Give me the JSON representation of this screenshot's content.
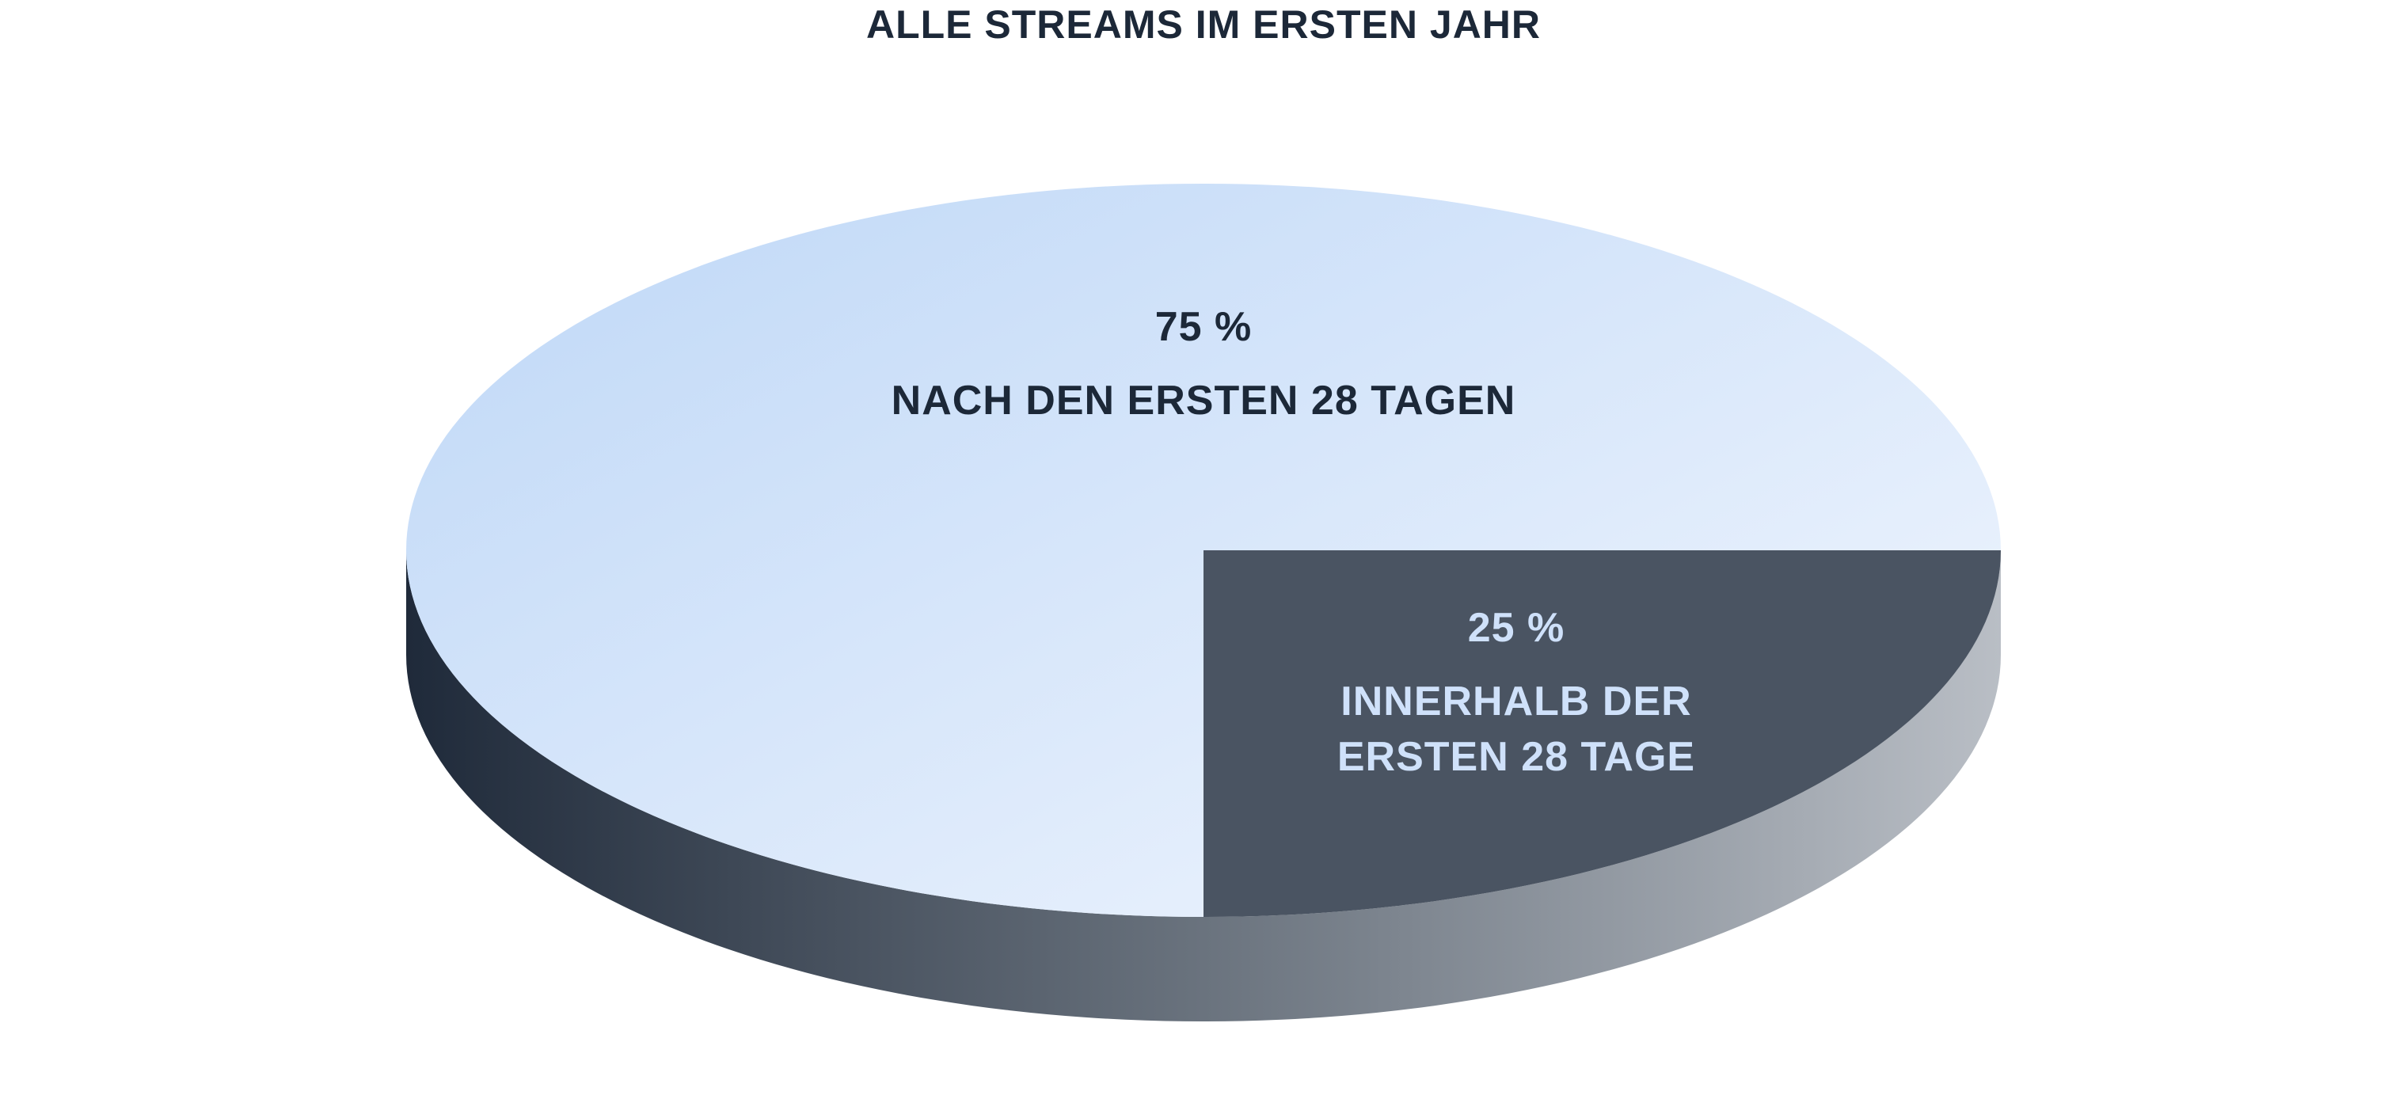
{
  "chart_data": {
    "type": "pie",
    "title": "ALLE STREAMS IM ERSTEN JAHR",
    "style": "3d",
    "slices": [
      {
        "name": "NACH DEN ERSTEN 28 TAGEN",
        "value": 75,
        "value_label": "75 %",
        "label_lines": [
          "NACH DEN ERSTEN 28 TAGEN"
        ],
        "color": "#cfe1fa"
      },
      {
        "name": "INNERHALB DER ERSTEN 28 TAGE",
        "value": 25,
        "value_label": "25 %",
        "label_lines": [
          "INNERHALB DER",
          "ERSTEN 28 TAGE"
        ],
        "color": "#4a5462"
      }
    ]
  },
  "colors": {
    "title_text": "#1c2838",
    "large_slice_text": "#1c2838",
    "small_slice_text": "#cfe1fa",
    "side_dark": "#1f2a3a",
    "side_light": "#b9bec5"
  }
}
